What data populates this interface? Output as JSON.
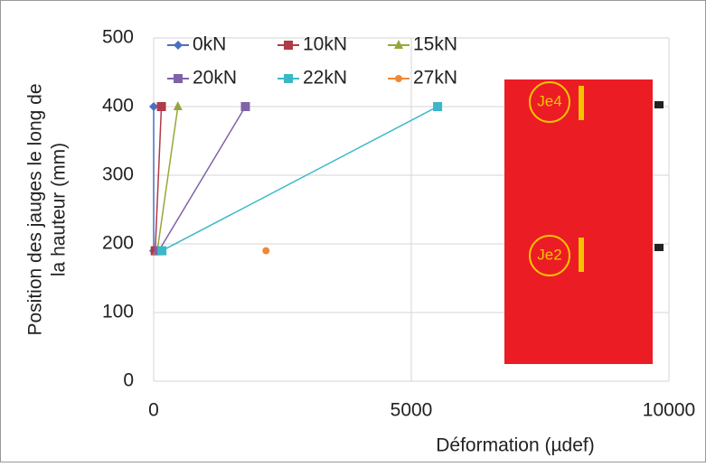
{
  "chart_data": {
    "type": "line",
    "xlabel": "Déformation (µdef)",
    "ylabel": [
      "Position des jauges le long de",
      "la hauteur (mm)"
    ],
    "xlim": [
      0,
      10000
    ],
    "xticks": [
      0,
      5000,
      10000
    ],
    "ylim": [
      0,
      500
    ],
    "yticks": [
      0,
      100,
      200,
      300,
      400,
      500
    ],
    "grid": true,
    "legend": "top-left",
    "series": [
      {
        "name": "0kN",
        "color": "#4a6fc0",
        "marker": "diamond",
        "x": [
          0,
          0
        ],
        "values": [
          190,
          400
        ]
      },
      {
        "name": "10kN",
        "color": "#b03a48",
        "marker": "square",
        "x": [
          30,
          150
        ],
        "values": [
          190,
          400
        ]
      },
      {
        "name": "15kN",
        "color": "#94a83a",
        "marker": "triangle",
        "x": [
          70,
          470
        ],
        "values": [
          190,
          400
        ]
      },
      {
        "name": "20kN",
        "color": "#7f62a8",
        "marker": "square",
        "x": [
          100,
          1780
        ],
        "values": [
          190,
          400
        ]
      },
      {
        "name": "22kN",
        "color": "#3ab8c8",
        "marker": "square",
        "x": [
          160,
          5510
        ],
        "values": [
          190,
          400
        ]
      },
      {
        "name": "27kN",
        "color": "#f0883a",
        "marker": "circle",
        "x": [
          2180,
          null
        ],
        "values": [
          190,
          null
        ]
      }
    ],
    "annotations": [
      "Je4",
      "Je2"
    ]
  }
}
